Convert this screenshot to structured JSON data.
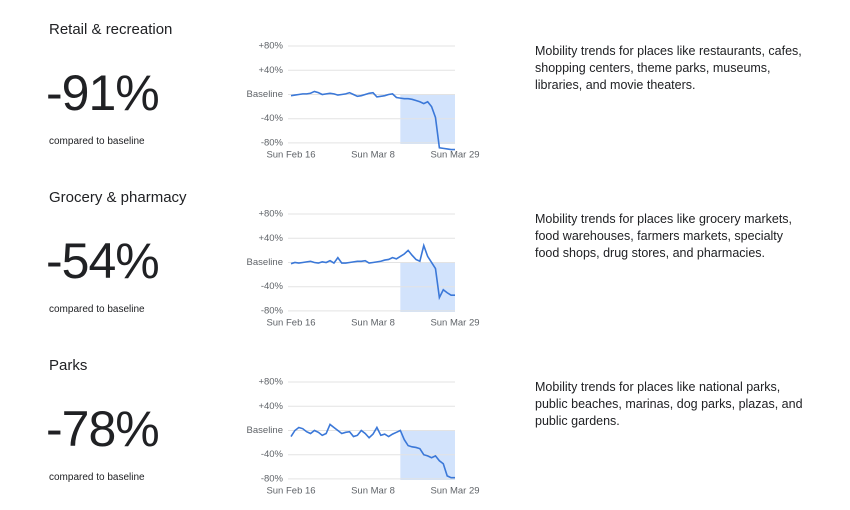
{
  "chart_data": [
    {
      "type": "line",
      "title": "Retail & recreation",
      "headline": "-91%",
      "caption": "compared to baseline",
      "description": "Mobility trends for places like restaurants, cafes, shopping centers, theme parks, museums, libraries, and movie theaters.",
      "categories": [
        "Sun Feb 16",
        null,
        null,
        null,
        null,
        null,
        null,
        null,
        null,
        null,
        null,
        null,
        null,
        null,
        null,
        null,
        null,
        null,
        null,
        null,
        null,
        "Sun Mar 8",
        null,
        null,
        null,
        null,
        null,
        null,
        null,
        null,
        null,
        null,
        null,
        null,
        null,
        null,
        null,
        null,
        null,
        null,
        null,
        null,
        "Sun Mar 29"
      ],
      "values": [
        -2,
        -1,
        0,
        1,
        1,
        2,
        5,
        3,
        0,
        1,
        2,
        1,
        -1,
        0,
        1,
        3,
        0,
        -3,
        -2,
        0,
        2,
        3,
        -4,
        -3,
        -2,
        0,
        1,
        -5,
        -6,
        -7,
        -7,
        -8,
        -10,
        -12,
        -15,
        -12,
        -20,
        -38,
        -88,
        -89,
        -90,
        -91,
        -91
      ],
      "color": "#3b78d8",
      "ylim": [
        -95,
        90
      ],
      "yticks": [
        {
          "value": 80,
          "label": "+80%"
        },
        {
          "value": 40,
          "label": "+40%"
        },
        {
          "value": 0,
          "label": "Baseline"
        },
        {
          "value": -40,
          "label": "-40%"
        },
        {
          "value": -80,
          "label": "-80%"
        }
      ],
      "grid": true
    },
    {
      "type": "line",
      "title": "Grocery & pharmacy",
      "headline": "-54%",
      "caption": "compared to baseline",
      "description": "Mobility trends for places like grocery markets, food warehouses, farmers markets, specialty food shops, drug stores, and pharmacies.",
      "categories": [
        "Sun Feb 16",
        null,
        null,
        null,
        null,
        null,
        null,
        null,
        null,
        null,
        null,
        null,
        null,
        null,
        null,
        null,
        null,
        null,
        null,
        null,
        null,
        "Sun Mar 8",
        null,
        null,
        null,
        null,
        null,
        null,
        null,
        null,
        null,
        null,
        null,
        null,
        null,
        null,
        null,
        null,
        null,
        null,
        null,
        null,
        "Sun Mar 29"
      ],
      "values": [
        -2,
        0,
        -1,
        0,
        1,
        2,
        0,
        -1,
        1,
        0,
        3,
        -1,
        8,
        -1,
        -1,
        0,
        1,
        2,
        2,
        3,
        -1,
        0,
        1,
        2,
        4,
        5,
        8,
        6,
        10,
        14,
        20,
        12,
        5,
        2,
        28,
        10,
        0,
        -10,
        -58,
        -45,
        -50,
        -54,
        -54
      ],
      "color": "#3b78d8",
      "ylim": [
        -95,
        90
      ],
      "yticks": [
        {
          "value": 80,
          "label": "+80%"
        },
        {
          "value": 40,
          "label": "+40%"
        },
        {
          "value": 0,
          "label": "Baseline"
        },
        {
          "value": -40,
          "label": "-40%"
        },
        {
          "value": -80,
          "label": "-80%"
        }
      ],
      "grid": true
    },
    {
      "type": "line",
      "title": "Parks",
      "headline": "-78%",
      "caption": "compared to baseline",
      "description": "Mobility trends for places like national parks, public beaches, marinas, dog parks, plazas, and public gardens.",
      "categories": [
        "Sun Feb 16",
        null,
        null,
        null,
        null,
        null,
        null,
        null,
        null,
        null,
        null,
        null,
        null,
        null,
        null,
        null,
        null,
        null,
        null,
        null,
        null,
        "Sun Mar 8",
        null,
        null,
        null,
        null,
        null,
        null,
        null,
        null,
        null,
        null,
        null,
        null,
        null,
        null,
        null,
        null,
        null,
        null,
        null,
        null,
        "Sun Mar 29"
      ],
      "values": [
        -10,
        0,
        5,
        3,
        -2,
        -5,
        0,
        -3,
        -8,
        -5,
        10,
        5,
        0,
        -5,
        -3,
        -2,
        -10,
        -8,
        0,
        -5,
        -12,
        -6,
        5,
        -8,
        -6,
        -10,
        -6,
        -3,
        0,
        -15,
        -25,
        -27,
        -28,
        -30,
        -40,
        -42,
        -45,
        -42,
        -50,
        -55,
        -75,
        -78,
        -78
      ],
      "color": "#3b78d8",
      "ylim": [
        -95,
        90
      ],
      "yticks": [
        {
          "value": 80,
          "label": "+80%"
        },
        {
          "value": 40,
          "label": "+40%"
        },
        {
          "value": 0,
          "label": "Baseline"
        },
        {
          "value": -40,
          "label": "-40%"
        },
        {
          "value": -80,
          "label": "-80%"
        }
      ],
      "grid": true
    }
  ]
}
